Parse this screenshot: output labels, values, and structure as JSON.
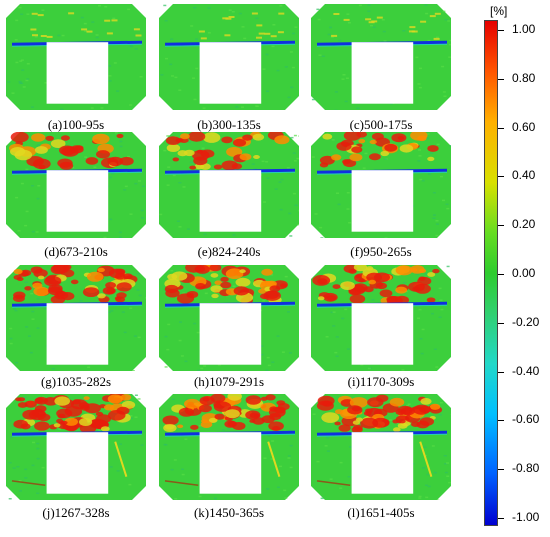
{
  "panels": [
    {
      "label": "(a)100-95s",
      "stage": 0
    },
    {
      "label": "(b)300-135s",
      "stage": 0
    },
    {
      "label": "(c)500-175s",
      "stage": 0
    },
    {
      "label": "(d)673-210s",
      "stage": 1
    },
    {
      "label": "(e)824-240s",
      "stage": 1
    },
    {
      "label": "(f)950-265s",
      "stage": 1
    },
    {
      "label": "(g)1035-282s",
      "stage": 2
    },
    {
      "label": "(h)1079-291s",
      "stage": 2
    },
    {
      "label": "(i)1170-309s",
      "stage": 2
    },
    {
      "label": "(j)1267-328s",
      "stage": 3
    },
    {
      "label": "(k)1450-365s",
      "stage": 3
    },
    {
      "label": "(l)1651-405s",
      "stage": 3
    }
  ],
  "colorbar": {
    "unit": "[%]",
    "ticks": [
      "1.00",
      "0.80",
      "0.60",
      "0.40",
      "0.20",
      "0.00",
      "-0.20",
      "-0.40",
      "-0.60",
      "-0.80",
      "-1.00"
    ]
  },
  "colors": {
    "field": "#3ccf3c",
    "red": "#e81c0c",
    "blue": "#1030e0",
    "cyan": "#20d0d0",
    "yellow": "#e0d820"
  }
}
